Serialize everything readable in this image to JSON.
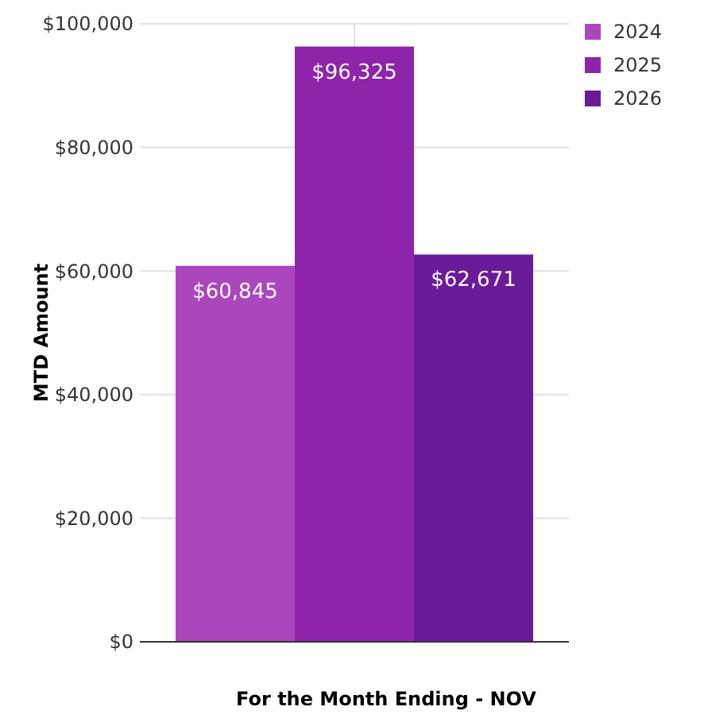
{
  "chart_data": {
    "type": "bar",
    "xlabel": "For the Month Ending - NOV",
    "ylabel": "MTD Amount",
    "categories": [
      null
    ],
    "series": [
      {
        "name": "2024",
        "color": "#ab47bc",
        "values": [
          60845
        ],
        "value_labels": [
          "$60,845"
        ]
      },
      {
        "name": "2025",
        "color": "#8e24aa",
        "values": [
          96325
        ],
        "value_labels": [
          "$96,325"
        ]
      },
      {
        "name": "2026",
        "color": "#6a1b9a",
        "values": [
          62671
        ],
        "value_labels": [
          "$62,671"
        ]
      }
    ],
    "ylim": [
      0,
      100000
    ],
    "yticks": [
      {
        "value": 0,
        "label": "$0"
      },
      {
        "value": 20000,
        "label": "$20,000"
      },
      {
        "value": 40000,
        "label": "$40,000"
      },
      {
        "value": 60000,
        "label": "$60,000"
      },
      {
        "value": 80000,
        "label": "$80,000"
      },
      {
        "value": 100000,
        "label": "$100,000"
      }
    ],
    "grid": true,
    "legend": "top right"
  }
}
